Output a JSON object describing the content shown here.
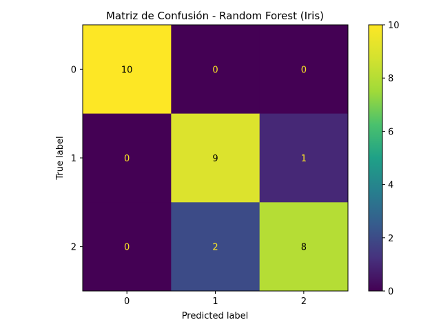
{
  "chart_data": {
    "type": "heatmap",
    "title": "Matriz de Confusión - Random Forest (Iris)",
    "xlabel": "Predicted label",
    "ylabel": "True label",
    "x_categories": [
      "0",
      "1",
      "2"
    ],
    "y_categories": [
      "0",
      "1",
      "2"
    ],
    "matrix": [
      [
        10,
        0,
        0
      ],
      [
        0,
        9,
        1
      ],
      [
        0,
        2,
        8
      ]
    ],
    "colormap": "viridis",
    "colorbar": {
      "range": [
        0,
        10
      ],
      "ticks": [
        "0",
        "2",
        "4",
        "6",
        "8",
        "10"
      ]
    },
    "cell_text_colors": {
      "on_dark": "#fde725",
      "on_light": "#000000"
    },
    "grid": false
  }
}
